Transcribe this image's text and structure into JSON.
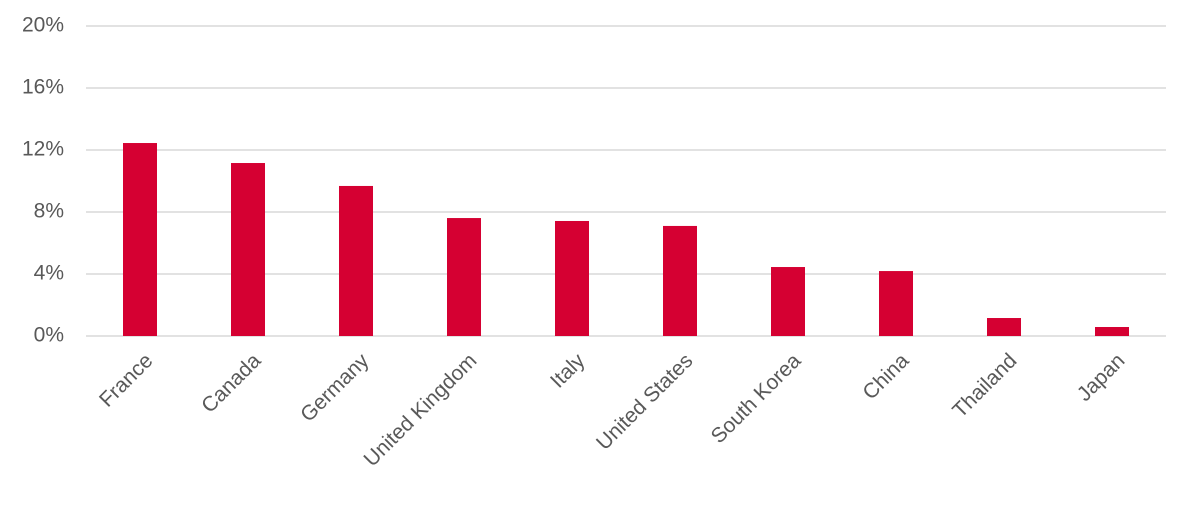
{
  "chart_data": {
    "type": "bar",
    "categories": [
      "France",
      "Canada",
      "Germany",
      "United Kingdom",
      "Italy",
      "United States",
      "South Korea",
      "China",
      "Thailand",
      "Japan"
    ],
    "values": [
      12.45,
      11.16,
      9.68,
      7.61,
      7.42,
      7.1,
      4.45,
      4.19,
      1.16,
      0.58
    ],
    "color": "#d50032",
    "ylim": [
      0,
      20
    ],
    "yticks": [
      {
        "value": 0,
        "label": "0%"
      },
      {
        "value": 4,
        "label": "4%"
      },
      {
        "value": 8,
        "label": "8%"
      },
      {
        "value": 12,
        "label": "12%"
      },
      {
        "value": 16,
        "label": "16%"
      },
      {
        "value": 20,
        "label": "20%"
      }
    ],
    "grid": true
  }
}
